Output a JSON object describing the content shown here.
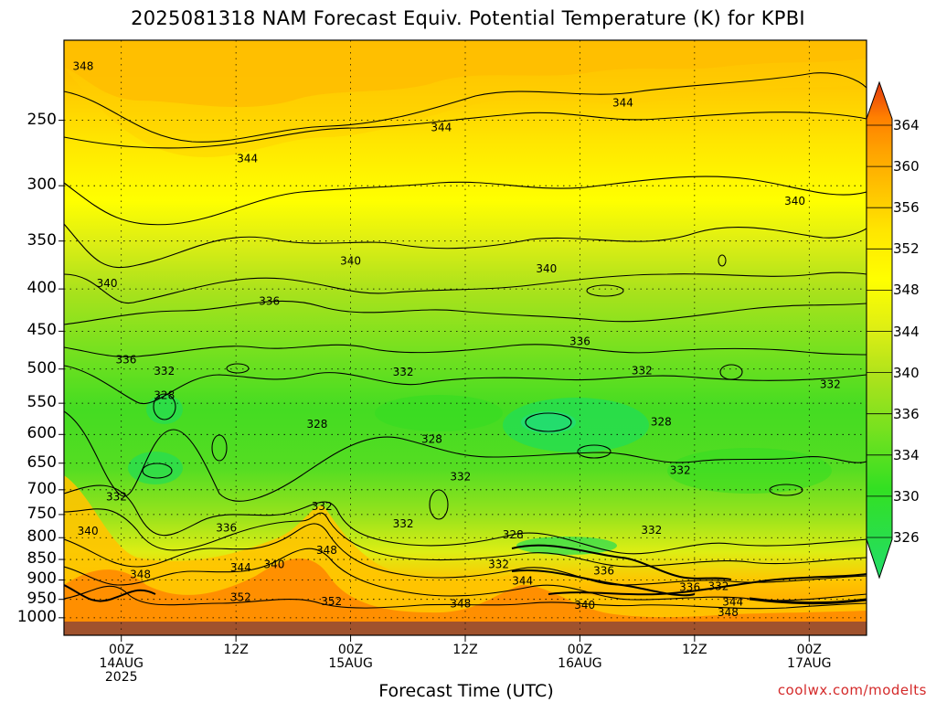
{
  "page": {
    "title": "2025081318 NAM Forecast Equiv. Potential Temperature (K) for KPBI",
    "x_axis_title": "Forecast Time (UTC)",
    "credit": "coolwx.com/modelts"
  },
  "chart_data": {
    "type": "heatmap",
    "title": "2025081318 NAM Forecast Equiv. Potential Temperature (K) for KPBI",
    "xlabel": "Forecast Time (UTC)",
    "ylabel": "",
    "y_scale": "log-pressure",
    "y_inverted": true,
    "ylim": [
      1050,
      200
    ],
    "grid": true,
    "y_ticks": [
      "250",
      "300",
      "350",
      "400",
      "450",
      "500",
      "550",
      "600",
      "650",
      "700",
      "750",
      "800",
      "850",
      "900",
      "950",
      "1000"
    ],
    "x_ticks": [
      {
        "label": [
          "00Z",
          "14AUG",
          "2025"
        ],
        "hour": 6
      },
      {
        "label": [
          "12Z"
        ],
        "hour": 18
      },
      {
        "label": [
          "00Z",
          "15AUG"
        ],
        "hour": 30
      },
      {
        "label": [
          "12Z"
        ],
        "hour": 42
      },
      {
        "label": [
          "00Z",
          "16AUG"
        ],
        "hour": 54
      },
      {
        "label": [
          "12Z"
        ],
        "hour": 66
      },
      {
        "label": [
          "00Z",
          "17AUG"
        ],
        "hour": 78
      }
    ],
    "xlim_hours": [
      0,
      84
    ],
    "colorbar": {
      "levels": [
        "326",
        "330",
        "334",
        "336",
        "340",
        "344",
        "348",
        "352",
        "356",
        "360",
        "364"
      ],
      "colors": [
        "#22dd6a",
        "#33e022",
        "#77e11f",
        "#aae21c",
        "#ddee14",
        "#ffff00",
        "#ffe600",
        "#ffc400",
        "#ffa300",
        "#ff7f00",
        "#f25a0e",
        "#e2380f"
      ]
    },
    "levels_hPa": [
      1000,
      950,
      900,
      850,
      800,
      750,
      700,
      650,
      600,
      550,
      500,
      450,
      400,
      350,
      300,
      250
    ],
    "contour_labels": [
      {
        "value": "348",
        "hour": 2.0,
        "p": 215
      },
      {
        "value": "344",
        "hour": 19.2,
        "p": 278
      },
      {
        "value": "344",
        "hour": 39.5,
        "p": 255
      },
      {
        "value": "344",
        "hour": 58.5,
        "p": 238
      },
      {
        "value": "340",
        "hour": 76.5,
        "p": 313
      },
      {
        "value": "340",
        "hour": 30.0,
        "p": 370
      },
      {
        "value": "340",
        "hour": 50.5,
        "p": 378
      },
      {
        "value": "340",
        "hour": 4.5,
        "p": 394
      },
      {
        "value": "336",
        "hour": 21.5,
        "p": 414
      },
      {
        "value": "336",
        "hour": 54.0,
        "p": 463
      },
      {
        "value": "336",
        "hour": 6.5,
        "p": 487
      },
      {
        "value": "332",
        "hour": 10.5,
        "p": 503
      },
      {
        "value": "332",
        "hour": 35.5,
        "p": 504
      },
      {
        "value": "332",
        "hour": 60.5,
        "p": 502
      },
      {
        "value": "332",
        "hour": 80.2,
        "p": 522
      },
      {
        "value": "328",
        "hour": 10.5,
        "p": 538
      },
      {
        "value": "328",
        "hour": 26.5,
        "p": 583
      },
      {
        "value": "328",
        "hour": 38.5,
        "p": 608
      },
      {
        "value": "328",
        "hour": 62.5,
        "p": 579
      },
      {
        "value": "332",
        "hour": 41.5,
        "p": 675
      },
      {
        "value": "332",
        "hour": 64.5,
        "p": 663
      },
      {
        "value": "332",
        "hour": 5.5,
        "p": 714
      },
      {
        "value": "332",
        "hour": 27.0,
        "p": 733
      },
      {
        "value": "332",
        "hour": 35.5,
        "p": 770
      },
      {
        "value": "332",
        "hour": 61.5,
        "p": 783
      },
      {
        "value": "336",
        "hour": 17.0,
        "p": 778
      },
      {
        "value": "340",
        "hour": 2.5,
        "p": 785
      },
      {
        "value": "328",
        "hour": 47.0,
        "p": 793
      },
      {
        "value": "348",
        "hour": 27.5,
        "p": 829
      },
      {
        "value": "344",
        "hour": 18.5,
        "p": 870
      },
      {
        "value": "340",
        "hour": 22.0,
        "p": 862
      },
      {
        "value": "332",
        "hour": 45.5,
        "p": 862
      },
      {
        "value": "348",
        "hour": 8.0,
        "p": 886
      },
      {
        "value": "336",
        "hour": 56.5,
        "p": 877
      },
      {
        "value": "344",
        "hour": 48.0,
        "p": 902
      },
      {
        "value": "352",
        "hour": 18.5,
        "p": 945
      },
      {
        "value": "352",
        "hour": 28.0,
        "p": 956
      },
      {
        "value": "348",
        "hour": 41.5,
        "p": 962
      },
      {
        "value": "336",
        "hour": 65.5,
        "p": 918
      },
      {
        "value": "332",
        "hour": 68.5,
        "p": 916
      },
      {
        "value": "344",
        "hour": 70.0,
        "p": 957
      },
      {
        "value": "340",
        "hour": 54.5,
        "p": 965
      },
      {
        "value": "348",
        "hour": 69.5,
        "p": 985
      }
    ]
  }
}
